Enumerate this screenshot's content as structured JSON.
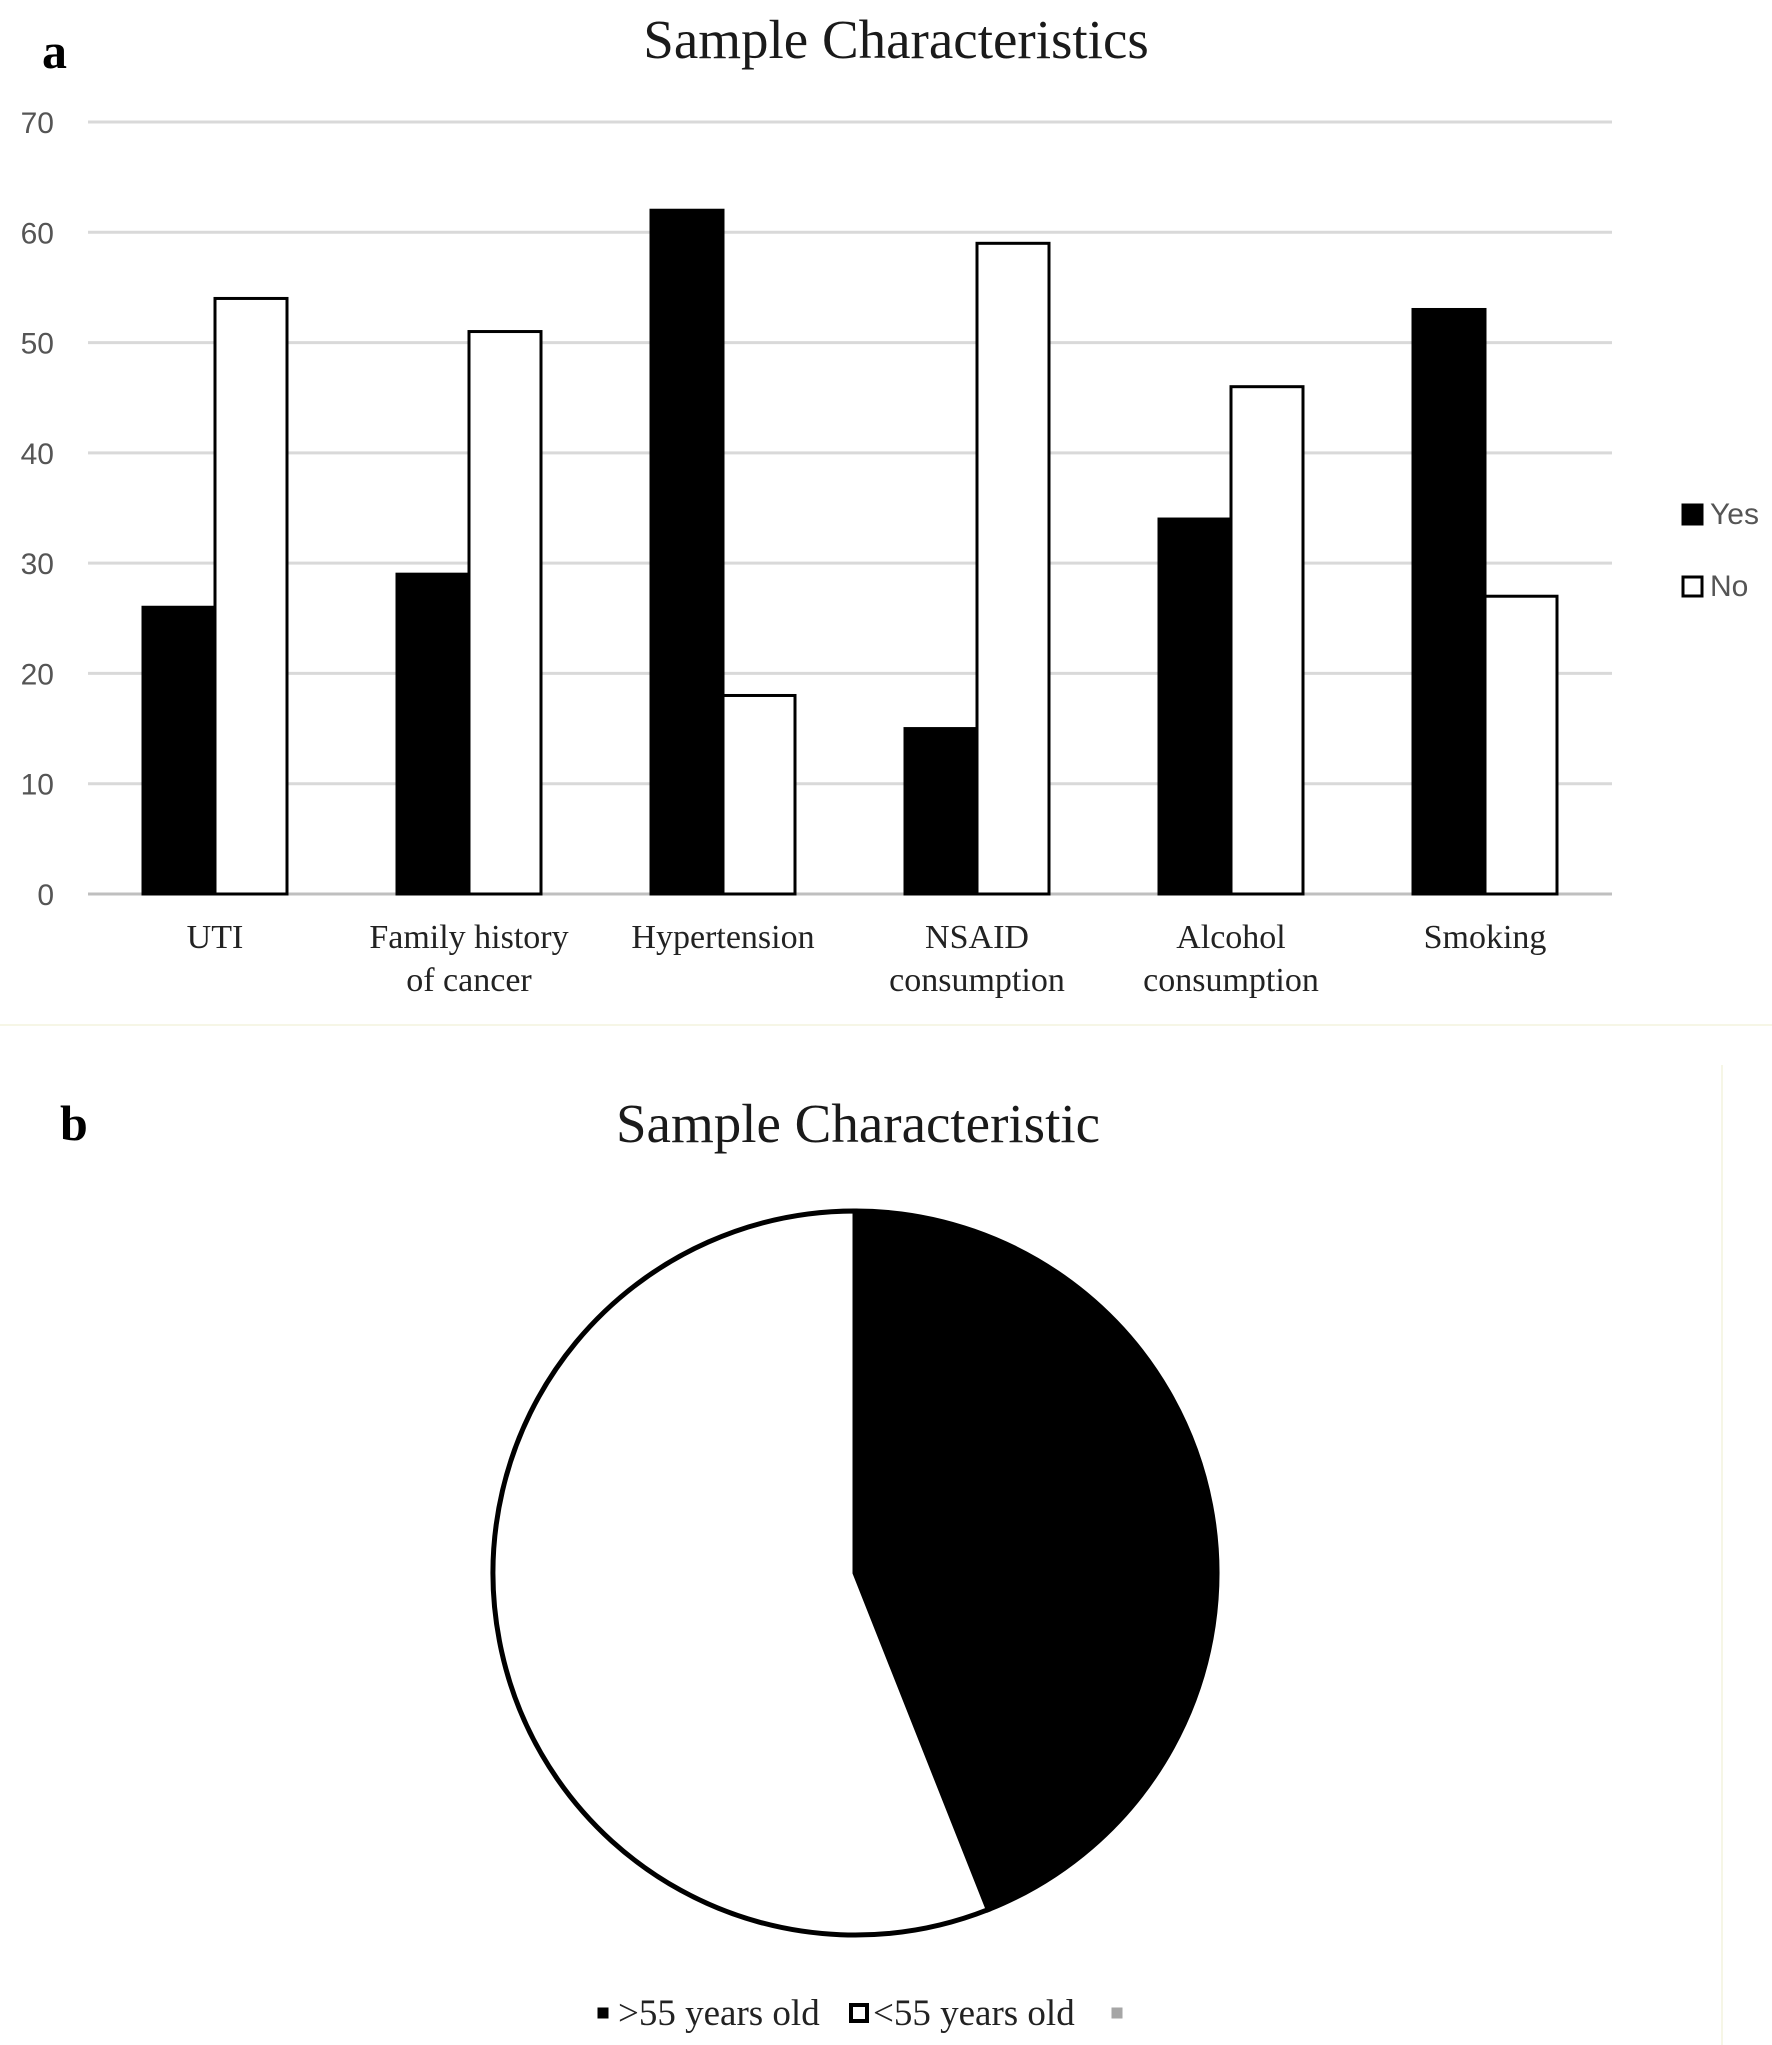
{
  "panels": {
    "a": "a",
    "b": "b"
  },
  "chart_data": [
    {
      "type": "bar",
      "title": "Sample Characteristics",
      "categories": [
        "UTI",
        "Family history of cancer",
        "Hypertension",
        "NSAID consumption",
        "Alcohol consumption",
        "Smoking"
      ],
      "category_lines": [
        [
          "UTI"
        ],
        [
          "Family history",
          "of cancer"
        ],
        [
          "Hypertension"
        ],
        [
          "NSAID",
          "consumption"
        ],
        [
          "Alcohol",
          "consumption"
        ],
        [
          "Smoking"
        ]
      ],
      "series": [
        {
          "name": "Yes",
          "values": [
            26,
            29,
            62,
            15,
            34,
            53
          ],
          "color": "#000000"
        },
        {
          "name": "No",
          "values": [
            54,
            51,
            18,
            59,
            46,
            27
          ],
          "color": "#ffffff"
        }
      ],
      "ylim": [
        0,
        70
      ],
      "yticks": [
        0,
        10,
        20,
        30,
        40,
        50,
        60,
        70
      ],
      "grid": true,
      "legend": "right",
      "xlabel": "",
      "ylabel": ""
    },
    {
      "type": "pie",
      "title": "Sample Characteristic",
      "labels": [
        ">55 years old",
        "<55 years old",
        ""
      ],
      "values": [
        44,
        56,
        0
      ],
      "colors": [
        "#000000",
        "#ffffff",
        "#a6a6a6"
      ],
      "legend": "bottom"
    }
  ]
}
